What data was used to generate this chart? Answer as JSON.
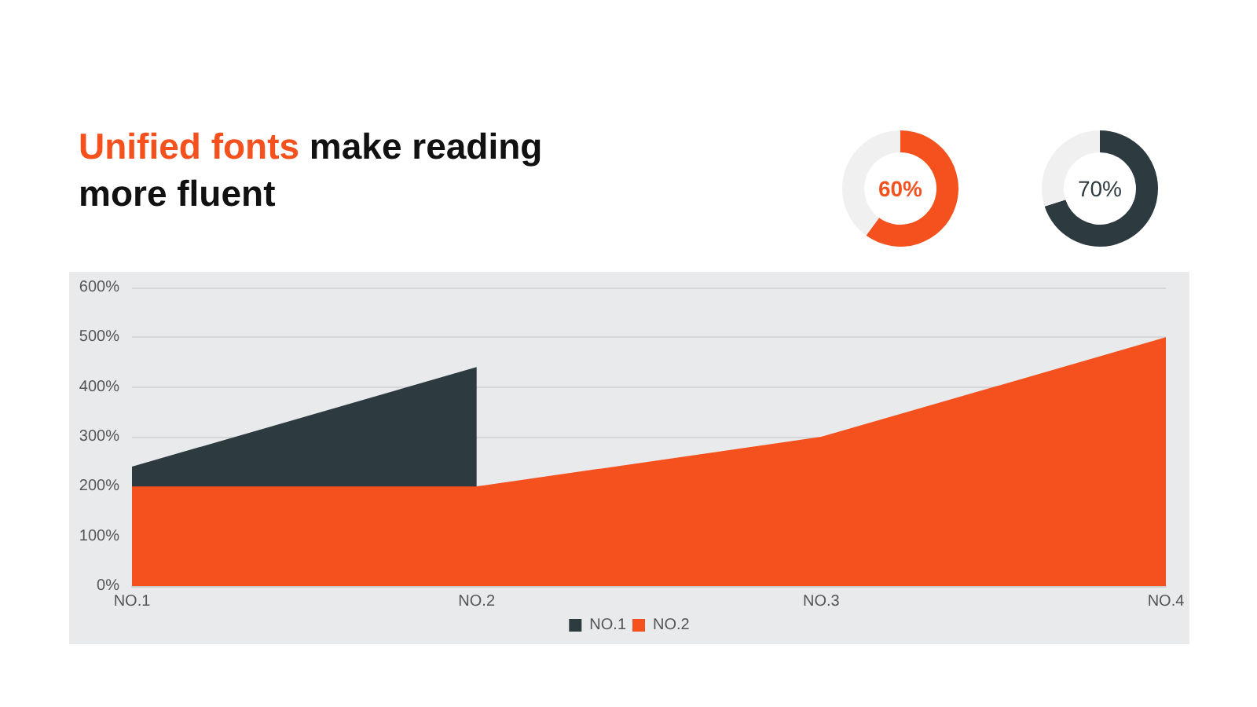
{
  "chart_data": [
    {
      "type": "donut",
      "categories": [
        null,
        null
      ],
      "values": [
        60,
        40
      ],
      "colors": [
        "#f4511e",
        "#f0f0f0"
      ],
      "value_labels": [
        "60%",
        null
      ]
    },
    {
      "type": "donut",
      "categories": [
        null,
        null
      ],
      "values": [
        70,
        30
      ],
      "colors": [
        "#2d3a40",
        "#f0f0f0"
      ],
      "value_labels": [
        "70%",
        null
      ]
    },
    {
      "type": "area",
      "title": "Unified fonts make reading more fluent",
      "categories": [
        "NO.1",
        "NO.2",
        "NO.3",
        "NO.4"
      ],
      "series": [
        {
          "name": "NO.1",
          "color": "#2d3a40",
          "values": [
            240,
            440,
            null,
            null
          ]
        },
        {
          "name": "NO.2",
          "color": "#f4511e",
          "values": [
            200,
            200,
            300,
            500
          ]
        }
      ],
      "ylim": [
        0,
        600
      ],
      "yticks": [
        {
          "value": 0,
          "label": "0%"
        },
        {
          "value": 100,
          "label": "100%"
        },
        {
          "value": 200,
          "label": "200%"
        },
        {
          "value": 300,
          "label": "300%"
        },
        {
          "value": 400,
          "label": "400%"
        },
        {
          "value": 500,
          "label": "500%"
        },
        {
          "value": 600,
          "label": "600%"
        }
      ],
      "grid": "y",
      "legend": "bottom"
    }
  ]
}
